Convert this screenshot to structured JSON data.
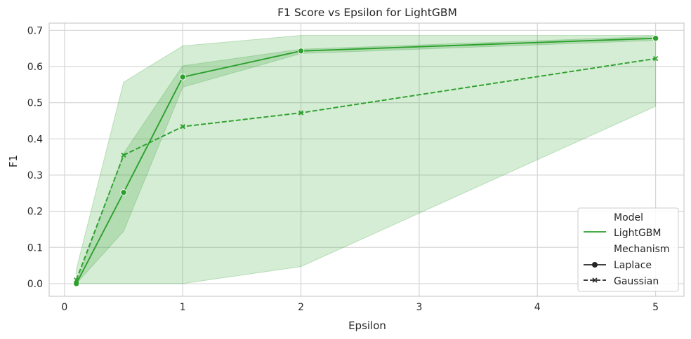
{
  "chart_data": {
    "type": "line",
    "title": "F1 Score vs Epsilon for LightGBM",
    "xlabel": "Epsilon",
    "ylabel": "F1",
    "xlim": [
      -0.13,
      5.24
    ],
    "ylim": [
      -0.035,
      0.72
    ],
    "xticks": [
      0,
      1,
      2,
      3,
      4,
      5
    ],
    "yticks": [
      0.0,
      0.1,
      0.2,
      0.3,
      0.4,
      0.5,
      0.6,
      0.7
    ],
    "x": [
      0.1,
      0.5,
      1,
      2,
      5
    ],
    "grid": true,
    "color": "#2ca02c",
    "series": [
      {
        "name": "Laplace",
        "model": "LightGBM",
        "values": [
          0.0,
          0.252,
          0.571,
          0.643,
          0.678
        ],
        "band_lower": [
          0.0,
          0.145,
          0.543,
          0.636,
          0.672
        ],
        "band_upper": [
          0.0,
          0.36,
          0.602,
          0.648,
          0.683
        ],
        "marker": "circle",
        "line_style": "solid"
      },
      {
        "name": "Gaussian",
        "model": "LightGBM",
        "values": [
          0.01,
          0.355,
          0.434,
          0.472,
          0.622
        ],
        "band_lower": [
          0.0,
          0.0,
          0.0,
          0.047,
          0.49
        ],
        "band_upper": [
          0.04,
          0.557,
          0.657,
          0.686,
          0.686
        ],
        "marker": "x",
        "line_style": "dashed"
      }
    ],
    "legend": {
      "position": "lower-right",
      "entries": [
        {
          "label": "Model",
          "kind": "heading"
        },
        {
          "label": "LightGBM",
          "kind": "line-solid"
        },
        {
          "label": "Mechanism",
          "kind": "heading"
        },
        {
          "label": "Laplace",
          "kind": "line-solid-circle"
        },
        {
          "label": "Gaussian",
          "kind": "line-dashed-x"
        }
      ]
    }
  }
}
